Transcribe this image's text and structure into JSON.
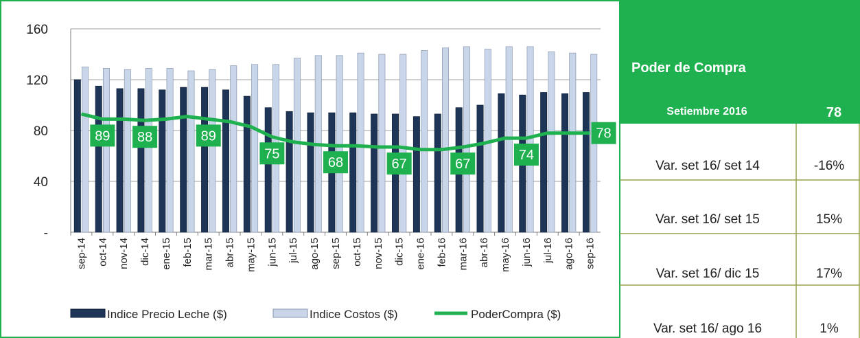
{
  "chart_data": {
    "type": "bar_line",
    "categories": [
      "sep-14",
      "oct-14",
      "nov-14",
      "dic-14",
      "ene-15",
      "feb-15",
      "mar-15",
      "abr-15",
      "may-15",
      "jun-15",
      "jul-15",
      "ago-15",
      "sep-15",
      "oct-15",
      "nov-15",
      "dic-15",
      "ene-16",
      "feb-16",
      "mar-16",
      "abr-16",
      "may-16",
      "jun-16",
      "jul-16",
      "ago-16",
      "sep-16"
    ],
    "series": [
      {
        "name": "Indice Precio Leche ($)",
        "type": "bar",
        "color": "#1f3558",
        "values": [
          120,
          115,
          113,
          113,
          112,
          114,
          114,
          112,
          107,
          98,
          95,
          94,
          94,
          94,
          93,
          93,
          91,
          93,
          98,
          100,
          109,
          108,
          110,
          109,
          110
        ]
      },
      {
        "name": "Indice Costos ($)",
        "type": "bar",
        "color": "#c9d5e8",
        "values": [
          130,
          129,
          128,
          129,
          129,
          127,
          128,
          131,
          132,
          132,
          137,
          139,
          139,
          141,
          140,
          140,
          143,
          145,
          146,
          144,
          146,
          146,
          142,
          141,
          140
        ]
      },
      {
        "name": "PoderCompra ($)",
        "type": "line",
        "color": "#1fb050",
        "values": [
          93,
          89,
          89,
          88,
          89,
          91,
          89,
          87,
          83,
          75,
          71,
          69,
          68,
          68,
          67,
          67,
          65,
          65,
          67,
          70,
          74,
          74,
          78,
          78,
          78
        ],
        "value_labels": [
          null,
          "89",
          null,
          "88",
          null,
          null,
          "89",
          null,
          null,
          "75",
          null,
          null,
          "68",
          null,
          null,
          "67",
          null,
          null,
          "67",
          null,
          null,
          "74",
          null,
          null,
          "78"
        ]
      }
    ],
    "ylim": [
      0,
      160
    ],
    "yticks": [
      {
        "value": 0,
        "label": "-"
      },
      40,
      80,
      120,
      160
    ],
    "grid": true
  },
  "table": {
    "title": "Poder de Compra",
    "period": "Setiembre 2016",
    "period_value": "78",
    "rows": [
      [
        "Var. set 16/ set 14",
        "-16%"
      ],
      [
        "Var. set 16/ set 15",
        "15%"
      ],
      [
        "Var. set 16/ dic 15",
        "17%"
      ],
      [
        "Var. set 16/ ago 16",
        "1%"
      ]
    ]
  }
}
